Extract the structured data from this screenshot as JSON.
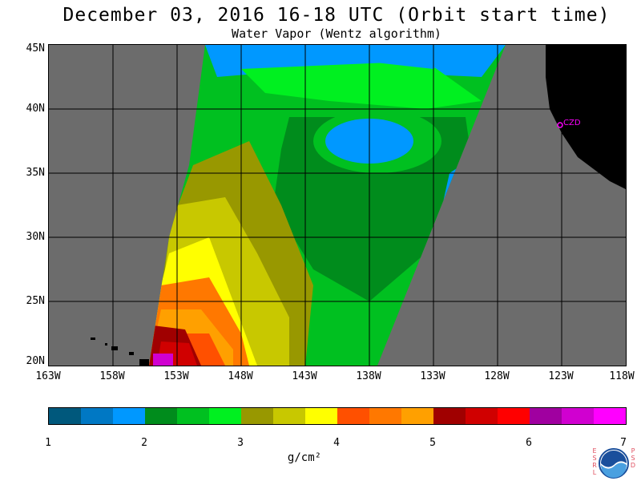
{
  "header": {
    "title": "December 03, 2016  16-18 UTC  (Orbit start time)",
    "subtitle": "Water Vapor (Wentz algorithm)"
  },
  "map": {
    "lat_labels": [
      "45N",
      "40N",
      "35N",
      "30N",
      "25N",
      "20N"
    ],
    "lon_labels": [
      "163W",
      "158W",
      "153W",
      "148W",
      "143W",
      "138W",
      "133W",
      "128W",
      "123W",
      "118W"
    ],
    "station_label": "CZD",
    "colors": {
      "no_data": "#6c6c6c",
      "land": "#000000",
      "station": "#ff00ff"
    }
  },
  "colorbar": {
    "labels": [
      "1",
      "2",
      "3",
      "4",
      "5",
      "6",
      "7"
    ],
    "units": "g/cm²",
    "colors": [
      "#00587c",
      "#0078c4",
      "#0098ff",
      "#008c1c",
      "#00c020",
      "#00f020",
      "#989800",
      "#c8c800",
      "#ffff00",
      "#ff5000",
      "#ff7800",
      "#ffa000",
      "#a00000",
      "#d00000",
      "#ff0000",
      "#a000a0",
      "#d000d0",
      "#ff00ff"
    ]
  },
  "logo": {
    "left_text": "ESRL",
    "right_text": "PSD",
    "badge_text": "NOAA"
  }
}
